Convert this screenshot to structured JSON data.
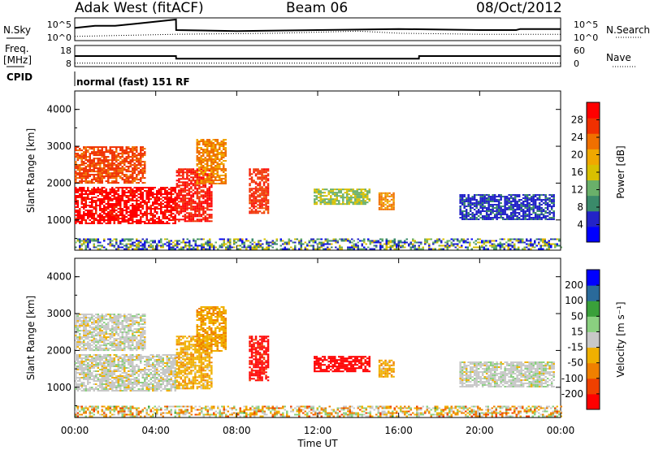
{
  "header": {
    "radar": "Adak West (fitACF)",
    "beam": "Beam 06",
    "date": "08/Oct/2012"
  },
  "strip_labels": {
    "nsky": "N.Sky",
    "nsearch": "N.Search",
    "freq_line1": "Freq.",
    "freq_line2": "[MHz]",
    "cpid": "CPID",
    "nave": "Nave",
    "mode": "normal (fast) 151 RF"
  },
  "colors": {
    "power": [
      "#0000ff",
      "#2323c8",
      "#3a8a6a",
      "#6ab06a",
      "#d8c000",
      "#f0a800",
      "#f07000",
      "#f03000",
      "#ff0000"
    ],
    "velocity": [
      "#ff0000",
      "#f04000",
      "#f08000",
      "#f0b000",
      "#c8c8c8",
      "#8ad080",
      "#3aa03a",
      "#2a6a9a",
      "#0000ff"
    ]
  },
  "chart_data": [
    {
      "type": "line",
      "name": "nsky-nsearch-strip",
      "x_ticks": [
        "00:00",
        "04:00",
        "08:00",
        "12:00",
        "16:00",
        "20:00",
        "00:00"
      ],
      "y_ticks_left": [
        "10^5",
        "10^0"
      ],
      "y_ticks_right": [
        "10^5",
        "10^0"
      ],
      "series": [
        {
          "name": "N.Sky",
          "x_hours": [
            0,
            1,
            2,
            3,
            4,
            5,
            5.01,
            8,
            12,
            16,
            20,
            21.8,
            22,
            24
          ],
          "values": [
            0.6,
            0.7,
            0.7,
            0.8,
            0.9,
            1.0,
            0.5,
            0.45,
            0.5,
            0.55,
            0.5,
            0.5,
            0.55,
            0.55
          ]
        },
        {
          "name": "N.Search",
          "x_hours": [
            0,
            5,
            10,
            14,
            16,
            20,
            24
          ],
          "values": [
            0.2,
            0.3,
            0.35,
            0.45,
            0.35,
            0.3,
            0.3
          ]
        }
      ]
    },
    {
      "type": "line",
      "name": "freq-nave-strip",
      "y_ticks_left": [
        "18",
        "8"
      ],
      "y_ticks_right": [
        "60",
        "0"
      ],
      "series": [
        {
          "name": "Freq.",
          "x_hours": [
            0,
            5,
            5.01,
            17,
            17.01,
            24
          ],
          "values": [
            12.0,
            12.0,
            10.5,
            10.5,
            12.0,
            12.0
          ]
        },
        {
          "name": "Nave",
          "x_hours": [
            0,
            24
          ],
          "values": [
            10,
            10
          ]
        }
      ]
    },
    {
      "type": "heatmap",
      "name": "power-panel",
      "ylabel": "Slant Range [km]",
      "y_ticks": [
        "4000",
        "3000",
        "2000",
        "1000"
      ],
      "ylim": [
        180,
        4500
      ],
      "xlim_hours": [
        0,
        24
      ],
      "colorbar": {
        "label": "Power [dB]",
        "ticks": [
          "28",
          "24",
          "20",
          "16",
          "12",
          "8",
          "4"
        ],
        "range": [
          0,
          32
        ]
      },
      "regions": [
        {
          "x_hours": [
            0.0,
            5.0
          ],
          "range_km": [
            900,
            1900
          ],
          "value": 30
        },
        {
          "x_hours": [
            0.0,
            3.5
          ],
          "range_km": [
            2000,
            3000
          ],
          "value": 26
        },
        {
          "x_hours": [
            5.0,
            6.8
          ],
          "range_km": [
            950,
            2400
          ],
          "value": 29
        },
        {
          "x_hours": [
            6.0,
            7.5
          ],
          "range_km": [
            2000,
            3200
          ],
          "value": 22
        },
        {
          "x_hours": [
            8.6,
            9.6
          ],
          "range_km": [
            1200,
            2400
          ],
          "value": 27
        },
        {
          "x_hours": [
            11.8,
            14.6
          ],
          "range_km": [
            1450,
            1850
          ],
          "value": 14
        },
        {
          "x_hours": [
            15.0,
            15.8
          ],
          "range_km": [
            1300,
            1750
          ],
          "value": 22
        },
        {
          "x_hours": [
            19.0,
            23.7
          ],
          "range_km": [
            1000,
            1700
          ],
          "value": 6
        },
        {
          "x_hours": [
            0.0,
            24.0
          ],
          "range_km": [
            200,
            500
          ],
          "value": 10
        }
      ]
    },
    {
      "type": "heatmap",
      "name": "velocity-panel",
      "ylabel": "Slant Range [km]",
      "y_ticks": [
        "4000",
        "3000",
        "2000",
        "1000"
      ],
      "ylim": [
        180,
        4500
      ],
      "xlim_hours": [
        0,
        24
      ],
      "xlabel": "Time UT",
      "colorbar": {
        "label": "Velocity [m s⁻¹]",
        "ticks": [
          "200",
          "100",
          "50",
          "15",
          "-15",
          "-50",
          "-100",
          "-200"
        ],
        "range": [
          -250,
          250
        ]
      },
      "regions": [
        {
          "x_hours": [
            0.0,
            5.0
          ],
          "range_km": [
            900,
            1900
          ],
          "value": 0
        },
        {
          "x_hours": [
            0.0,
            3.5
          ],
          "range_km": [
            2000,
            3000
          ],
          "value": 0
        },
        {
          "x_hours": [
            5.0,
            6.8
          ],
          "range_km": [
            950,
            2400
          ],
          "value": -60
        },
        {
          "x_hours": [
            6.0,
            7.5
          ],
          "range_km": [
            2000,
            3200
          ],
          "value": -70
        },
        {
          "x_hours": [
            8.6,
            9.6
          ],
          "range_km": [
            1200,
            2400
          ],
          "value": -220
        },
        {
          "x_hours": [
            11.8,
            14.6
          ],
          "range_km": [
            1450,
            1850
          ],
          "value": -230
        },
        {
          "x_hours": [
            15.0,
            15.8
          ],
          "range_km": [
            1300,
            1750
          ],
          "value": -60
        },
        {
          "x_hours": [
            19.0,
            23.7
          ],
          "range_km": [
            1000,
            1700
          ],
          "value": 5
        },
        {
          "x_hours": [
            0.0,
            24.0
          ],
          "range_km": [
            200,
            500
          ],
          "value": -40
        }
      ]
    }
  ]
}
